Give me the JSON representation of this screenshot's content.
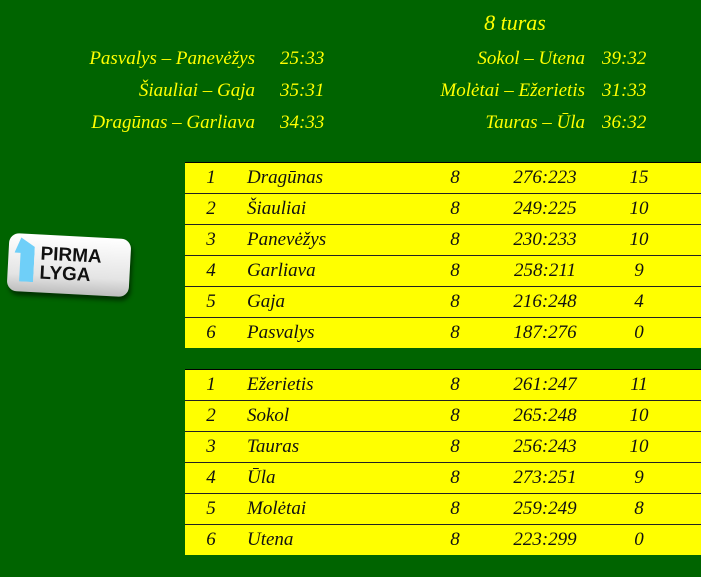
{
  "title": "8 turas",
  "matches_left": [
    {
      "teams": "Pasvalys – Panevėžys",
      "score": "25:33"
    },
    {
      "teams": "Šiauliai – Gaja",
      "score": "35:31"
    },
    {
      "teams": "Dragūnas – Garliava",
      "score": "34:33"
    }
  ],
  "matches_right": [
    {
      "teams": "Sokol – Utena",
      "score": "39:32"
    },
    {
      "teams": "Molėtai – Ežerietis",
      "score": "31:33"
    },
    {
      "teams": "Tauras – Ūla",
      "score": "36:32"
    }
  ],
  "logo": {
    "line1": "PIRMA",
    "line2": "LYGA"
  },
  "table1": [
    {
      "rank": "1",
      "team": "Dragūnas",
      "games": "8",
      "goals": "276:223",
      "points": "15"
    },
    {
      "rank": "2",
      "team": "Šiauliai",
      "games": "8",
      "goals": "249:225",
      "points": "10"
    },
    {
      "rank": "3",
      "team": "Panevėžys",
      "games": "8",
      "goals": "230:233",
      "points": "10"
    },
    {
      "rank": "4",
      "team": "Garliava",
      "games": "8",
      "goals": "258:211",
      "points": "9"
    },
    {
      "rank": "5",
      "team": "Gaja",
      "games": "8",
      "goals": "216:248",
      "points": "4"
    },
    {
      "rank": "6",
      "team": "Pasvalys",
      "games": "8",
      "goals": "187:276",
      "points": "0"
    }
  ],
  "table2": [
    {
      "rank": "1",
      "team": "Ežerietis",
      "games": "8",
      "goals": "261:247",
      "points": "11"
    },
    {
      "rank": "2",
      "team": "Sokol",
      "games": "8",
      "goals": "265:248",
      "points": "10"
    },
    {
      "rank": "3",
      "team": "Tauras",
      "games": "8",
      "goals": "256:243",
      "points": "10"
    },
    {
      "rank": "4",
      "team": "Ūla",
      "games": "8",
      "goals": "273:251",
      "points": "9"
    },
    {
      "rank": "5",
      "team": "Molėtai",
      "games": "8",
      "goals": "259:249",
      "points": "8"
    },
    {
      "rank": "6",
      "team": "Utena",
      "games": "8",
      "goals": "223:299",
      "points": "0"
    }
  ],
  "colors": {
    "background": "#006400",
    "accent": "#ffff00",
    "text_dark": "#111111"
  }
}
